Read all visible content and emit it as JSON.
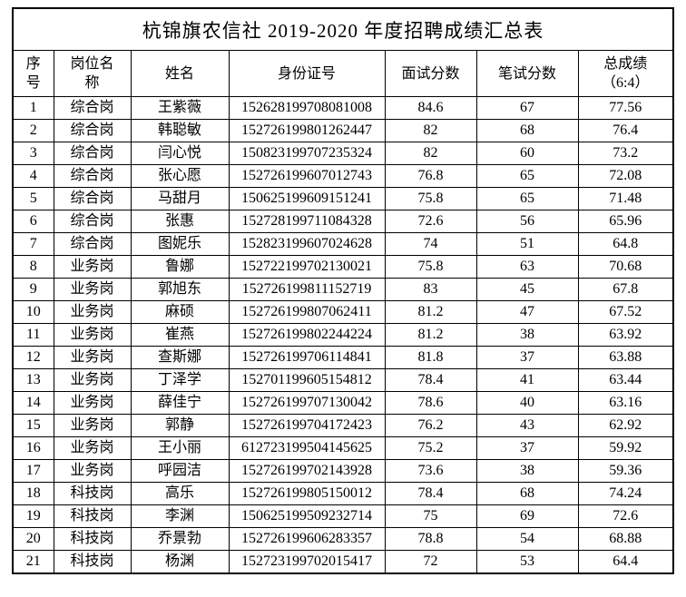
{
  "page": {
    "title": "杭锦旗农信社 2019-2020 年度招聘成绩汇总表"
  },
  "table": {
    "headers": [
      "序\n号",
      "岗位名\n称",
      "姓名",
      "身份证号",
      "面试分数",
      "笔试分数",
      "总成绩\n（6:4）"
    ],
    "rows": [
      {
        "no": "1",
        "position": "综合岗",
        "name": "王紫薇",
        "id_number": "152628199708081008",
        "interview": "84.6",
        "written": "67",
        "total": "77.56"
      },
      {
        "no": "2",
        "position": "综合岗",
        "name": "韩聪敏",
        "id_number": "152726199801262447",
        "interview": "82",
        "written": "68",
        "total": "76.4"
      },
      {
        "no": "3",
        "position": "综合岗",
        "name": "闫心悦",
        "id_number": "150823199707235324",
        "interview": "82",
        "written": "60",
        "total": "73.2"
      },
      {
        "no": "4",
        "position": "综合岗",
        "name": "张心愿",
        "id_number": "152726199607012743",
        "interview": "76.8",
        "written": "65",
        "total": "72.08"
      },
      {
        "no": "5",
        "position": "综合岗",
        "name": "马甜月",
        "id_number": "150625199609151241",
        "interview": "75.8",
        "written": "65",
        "total": "71.48"
      },
      {
        "no": "6",
        "position": "综合岗",
        "name": "张惠",
        "id_number": "152728199711084328",
        "interview": "72.6",
        "written": "56",
        "total": "65.96"
      },
      {
        "no": "7",
        "position": "综合岗",
        "name": "图妮乐",
        "id_number": "152823199607024628",
        "interview": "74",
        "written": "51",
        "total": "64.8"
      },
      {
        "no": "8",
        "position": "业务岗",
        "name": "鲁娜",
        "id_number": "152722199702130021",
        "interview": "75.8",
        "written": "63",
        "total": "70.68"
      },
      {
        "no": "9",
        "position": "业务岗",
        "name": "郭旭东",
        "id_number": "152726199811152719",
        "interview": "83",
        "written": "45",
        "total": "67.8"
      },
      {
        "no": "10",
        "position": "业务岗",
        "name": "麻硕",
        "id_number": "152726199807062411",
        "interview": "81.2",
        "written": "47",
        "total": "67.52"
      },
      {
        "no": "11",
        "position": "业务岗",
        "name": "崔燕",
        "id_number": "152726199802244224",
        "interview": "81.2",
        "written": "38",
        "total": "63.92"
      },
      {
        "no": "12",
        "position": "业务岗",
        "name": "查斯娜",
        "id_number": "152726199706114841",
        "interview": "81.8",
        "written": "37",
        "total": "63.88"
      },
      {
        "no": "13",
        "position": "业务岗",
        "name": "丁泽学",
        "id_number": "152701199605154812",
        "interview": "78.4",
        "written": "41",
        "total": "63.44"
      },
      {
        "no": "14",
        "position": "业务岗",
        "name": "薛佳宁",
        "id_number": "152726199707130042",
        "interview": "78.6",
        "written": "40",
        "total": "63.16"
      },
      {
        "no": "15",
        "position": "业务岗",
        "name": "郭静",
        "id_number": "152726199704172423",
        "interview": "76.2",
        "written": "43",
        "total": "62.92"
      },
      {
        "no": "16",
        "position": "业务岗",
        "name": "王小丽",
        "id_number": "612723199504145625",
        "interview": "75.2",
        "written": "37",
        "total": "59.92"
      },
      {
        "no": "17",
        "position": "业务岗",
        "name": "呼园洁",
        "id_number": "152726199702143928",
        "interview": "73.6",
        "written": "38",
        "total": "59.36"
      },
      {
        "no": "18",
        "position": "科技岗",
        "name": "高乐",
        "id_number": "152726199805150012",
        "interview": "78.4",
        "written": "68",
        "total": "74.24"
      },
      {
        "no": "19",
        "position": "科技岗",
        "name": "李渊",
        "id_number": "150625199509232714",
        "interview": "75",
        "written": "69",
        "total": "72.6"
      },
      {
        "no": "20",
        "position": "科技岗",
        "name": "乔景勃",
        "id_number": "152726199606283357",
        "interview": "78.8",
        "written": "54",
        "total": "68.88"
      },
      {
        "no": "21",
        "position": "科技岗",
        "name": "杨渊",
        "id_number": "152723199702015417",
        "interview": "72",
        "written": "53",
        "total": "64.4"
      }
    ]
  }
}
